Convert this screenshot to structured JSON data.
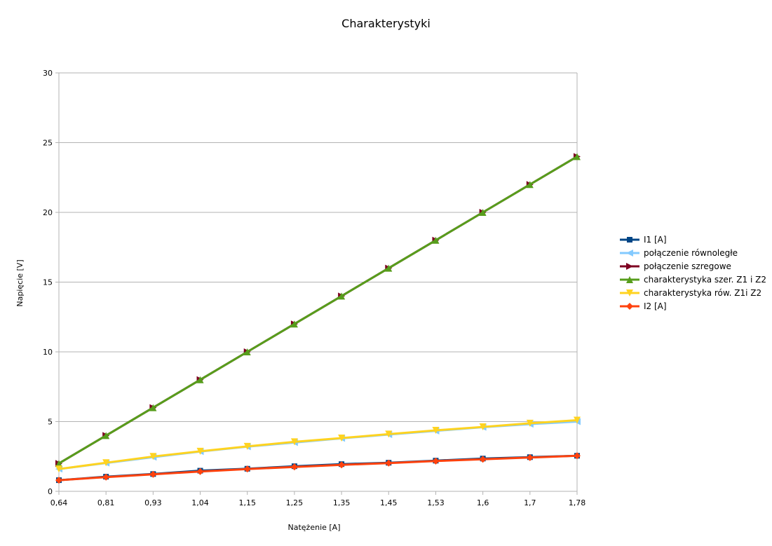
{
  "chart_data": {
    "type": "line",
    "title": "Charakterystyki",
    "xlabel": "Natężenie [A]",
    "ylabel": "Napięcie [V]",
    "categories": [
      "0,64",
      "0,81",
      "0,93",
      "1,04",
      "1,15",
      "1,25",
      "1,35",
      "1,45",
      "1,53",
      "1,6",
      "1,7",
      "1,78"
    ],
    "ylim": [
      0,
      30
    ],
    "yticks": [
      "0",
      "5",
      "10",
      "15",
      "20",
      "25",
      "30"
    ],
    "grid": true,
    "legend_position": "right",
    "series": [
      {
        "name": "I1 [A]",
        "color": "#004586",
        "marker": "square",
        "values": [
          0.8,
          1.05,
          1.24,
          1.48,
          1.62,
          1.8,
          1.95,
          2.05,
          2.2,
          2.35,
          2.45,
          2.55
        ]
      },
      {
        "name": "połączenie równoległe",
        "color": "#83caff",
        "marker": "triangle-left",
        "values": [
          1.6,
          2.03,
          2.45,
          2.85,
          3.2,
          3.5,
          3.8,
          4.07,
          4.33,
          4.6,
          4.82,
          5.0
        ]
      },
      {
        "name": "połączenie szregowe",
        "color": "#7e0021",
        "marker": "triangle-right",
        "values": [
          2,
          4,
          6,
          8,
          10,
          12,
          14,
          16,
          18,
          20,
          22,
          24
        ]
      },
      {
        "name": "charakterystyka szer. Z1 i Z2",
        "color": "#579d1c",
        "marker": "triangle-up",
        "values": [
          2,
          4,
          6,
          8,
          10,
          12,
          14,
          16,
          18,
          20,
          22,
          24
        ]
      },
      {
        "name": "charakterystyka rów. Z1i Z2",
        "color": "#ffd320",
        "marker": "triangle-down",
        "values": [
          1.6,
          2.05,
          2.5,
          2.87,
          3.22,
          3.55,
          3.82,
          4.1,
          4.37,
          4.62,
          4.88,
          5.1
        ]
      },
      {
        "name": "I2 [A]",
        "color": "#ff420e",
        "marker": "diamond",
        "values": [
          0.8,
          1.02,
          1.22,
          1.42,
          1.6,
          1.75,
          1.9,
          2.02,
          2.17,
          2.3,
          2.42,
          2.55
        ]
      }
    ]
  }
}
